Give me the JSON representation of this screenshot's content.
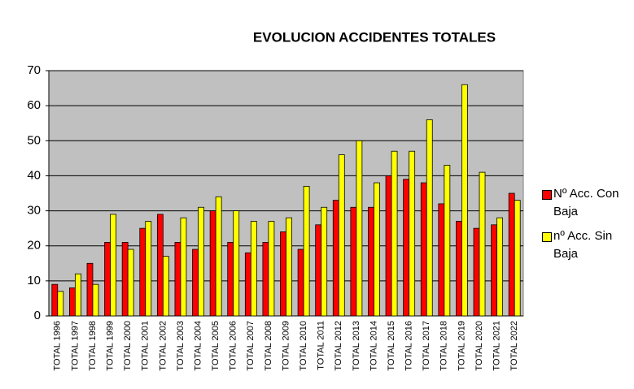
{
  "chart_data": {
    "type": "bar",
    "title": "EVOLUCION ACCIDENTES TOTALES",
    "categories": [
      "TOTAL 1996",
      "TOTAL 1997",
      "TOTAL 1998",
      "TOTAL 1999",
      "TOTAL 2000",
      "TOTAL 2001",
      "TOTAL 2002",
      "TOTAL 2003",
      "TOTAL 2004",
      "TOTAL 2005",
      "TOTAL 2006",
      "TOTAL 2007",
      "TOTAL 2008",
      "TOTAL 2009",
      "TOTAL 2010",
      "TOTAL 2011",
      "TOTAL 2012",
      "TOTAL 2013",
      "TOTAL 2014",
      "TOTAL 2015",
      "TOTAL 2016",
      "TOTAL 2017",
      "TOTAL 2018",
      "TOTAL 2019",
      "TOTAL 2020",
      "TOTAL 2021",
      "TOTAL 2022"
    ],
    "series": [
      {
        "name": "Nº Acc. Con Baja",
        "color": "#ff0000",
        "values": [
          9,
          8,
          15,
          21,
          21,
          25,
          29,
          21,
          19,
          30,
          21,
          18,
          21,
          24,
          19,
          26,
          33,
          31,
          31,
          40,
          39,
          38,
          32,
          27,
          25,
          26,
          35
        ]
      },
      {
        "name": "nº Acc. Sin Baja",
        "color": "#ffff00",
        "values": [
          7,
          12,
          9,
          29,
          19,
          27,
          17,
          28,
          31,
          34,
          30,
          27,
          27,
          28,
          37,
          31,
          46,
          50,
          38,
          47,
          47,
          56,
          43,
          66,
          41,
          28,
          33
        ]
      }
    ],
    "ylim": [
      0,
      70
    ],
    "yticks": [
      0,
      10,
      20,
      30,
      40,
      50,
      60,
      70
    ],
    "grid": true,
    "legend": "right"
  }
}
